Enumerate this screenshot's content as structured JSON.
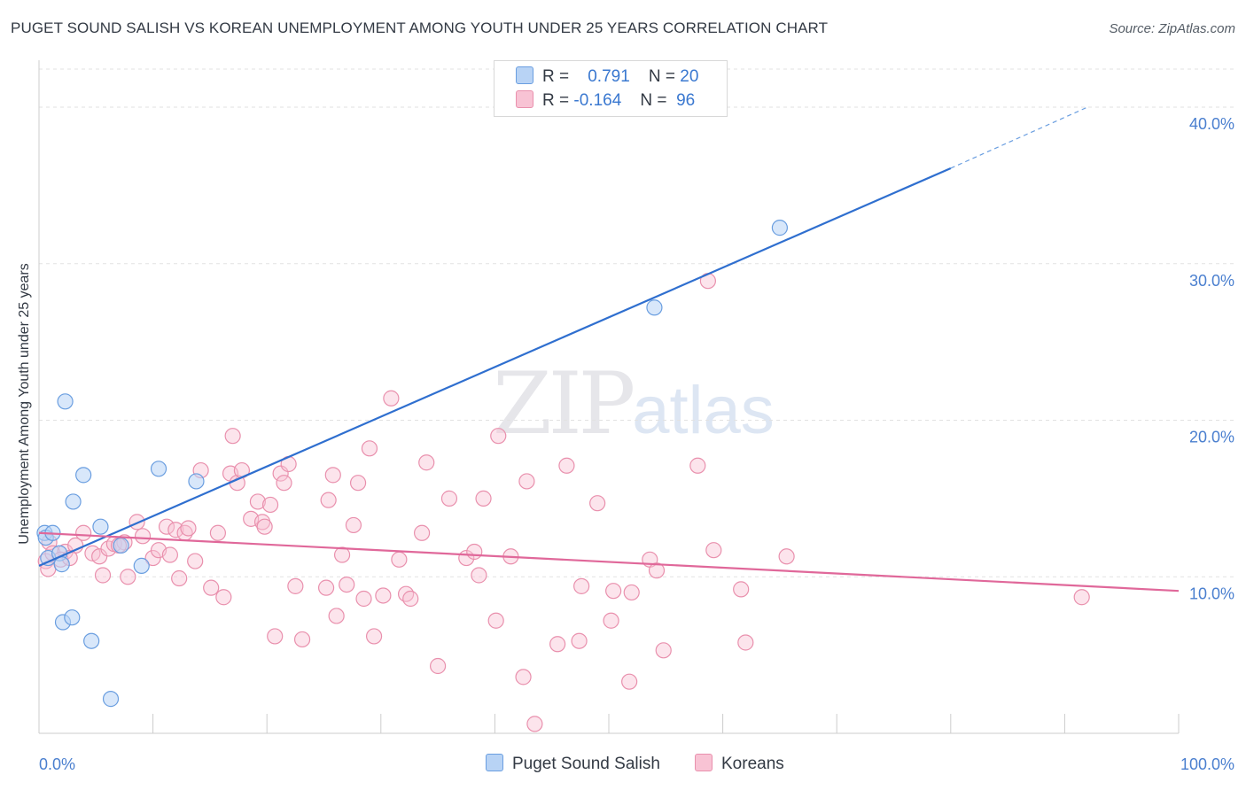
{
  "title": "PUGET SOUND SALISH VS KOREAN UNEMPLOYMENT AMONG YOUTH UNDER 25 YEARS CORRELATION CHART",
  "source": "Source: ZipAtlas.com",
  "watermark": {
    "part1": "ZIP",
    "part2": "atlas"
  },
  "legend": {
    "rows": [
      {
        "r_label": "R =",
        "r_value": "0.791",
        "n_label": "N =",
        "n_value": "20"
      },
      {
        "r_label": "R =",
        "r_value": "-0.164",
        "n_label": "N =",
        "n_value": "96"
      }
    ]
  },
  "bottom_legend": {
    "series1": "Puget Sound Salish",
    "series2": "Koreans"
  },
  "colors": {
    "salish_fill": "#b8d3f5",
    "salish_stroke": "#6a9ee0",
    "salish_line": "#2f6fcf",
    "korean_fill": "#f8c3d4",
    "korean_stroke": "#e990ad",
    "korean_line": "#e0689a",
    "axis_label": "#4a7fcf",
    "grid": "#e2e2e2"
  },
  "chart_data": {
    "type": "scatter",
    "title": "PUGET SOUND SALISH VS KOREAN UNEMPLOYMENT AMONG YOUTH UNDER 25 YEARS CORRELATION CHART",
    "xlabel": "",
    "ylabel": "Unemployment Among Youth under 25 years",
    "xlim": [
      0,
      100
    ],
    "ylim": [
      0,
      43
    ],
    "x_tick_labels": [
      {
        "value": 0,
        "label": "0.0%"
      },
      {
        "value": 100,
        "label": "100.0%"
      }
    ],
    "x_minor_ticks": [
      10,
      20,
      30,
      40,
      50,
      60,
      70,
      80,
      90,
      100
    ],
    "y_ticks": [
      {
        "value": 10,
        "label": "10.0%"
      },
      {
        "value": 20,
        "label": "20.0%"
      },
      {
        "value": 30,
        "label": "30.0%"
      },
      {
        "value": 40,
        "label": "40.0%"
      }
    ],
    "series": [
      {
        "name": "Puget Sound Salish",
        "points": [
          [
            0.5,
            12.8
          ],
          [
            0.6,
            12.5
          ],
          [
            1.2,
            12.8
          ],
          [
            0.8,
            11.2
          ],
          [
            1.8,
            11.5
          ],
          [
            2.0,
            10.8
          ],
          [
            2.3,
            21.2
          ],
          [
            3.0,
            14.8
          ],
          [
            3.9,
            16.5
          ],
          [
            5.4,
            13.2
          ],
          [
            7.2,
            12.0
          ],
          [
            9.0,
            10.7
          ],
          [
            10.5,
            16.9
          ],
          [
            13.8,
            16.1
          ],
          [
            2.1,
            7.1
          ],
          [
            2.9,
            7.4
          ],
          [
            4.6,
            5.9
          ],
          [
            6.3,
            2.2
          ],
          [
            54.0,
            27.2
          ],
          [
            65.0,
            32.3
          ]
        ],
        "trend": {
          "x": [
            0,
            80
          ],
          "y": [
            10.7,
            36.1
          ],
          "dashed_extension": {
            "x": [
              80,
              92
            ],
            "y": [
              36.1,
              40.0
            ]
          }
        }
      },
      {
        "name": "Koreans",
        "points": [
          [
            0.6,
            11.0
          ],
          [
            0.9,
            12.2
          ],
          [
            1.2,
            11.5
          ],
          [
            2.3,
            11.6
          ],
          [
            3.2,
            12.0
          ],
          [
            3.9,
            12.8
          ],
          [
            4.7,
            11.5
          ],
          [
            5.3,
            11.3
          ],
          [
            5.6,
            10.1
          ],
          [
            6.1,
            11.8
          ],
          [
            6.6,
            12.1
          ],
          [
            7.5,
            12.2
          ],
          [
            7.8,
            10.0
          ],
          [
            8.6,
            13.5
          ],
          [
            9.1,
            12.6
          ],
          [
            10.0,
            11.2
          ],
          [
            10.5,
            11.7
          ],
          [
            11.2,
            13.2
          ],
          [
            11.5,
            11.4
          ],
          [
            12.0,
            13.0
          ],
          [
            12.3,
            9.9
          ],
          [
            12.8,
            12.8
          ],
          [
            13.1,
            13.1
          ],
          [
            13.7,
            11.0
          ],
          [
            14.2,
            16.8
          ],
          [
            15.1,
            9.3
          ],
          [
            15.7,
            12.8
          ],
          [
            16.2,
            8.7
          ],
          [
            16.8,
            16.6
          ],
          [
            17.0,
            19.0
          ],
          [
            17.4,
            16.0
          ],
          [
            17.8,
            16.8
          ],
          [
            18.6,
            13.7
          ],
          [
            19.2,
            14.8
          ],
          [
            19.6,
            13.5
          ],
          [
            19.8,
            13.2
          ],
          [
            20.3,
            14.6
          ],
          [
            20.7,
            6.2
          ],
          [
            21.2,
            16.6
          ],
          [
            21.5,
            16.0
          ],
          [
            21.9,
            17.2
          ],
          [
            22.5,
            9.4
          ],
          [
            23.1,
            6.0
          ],
          [
            25.2,
            9.3
          ],
          [
            25.4,
            14.9
          ],
          [
            25.8,
            16.5
          ],
          [
            26.1,
            7.5
          ],
          [
            26.6,
            11.4
          ],
          [
            27.0,
            9.5
          ],
          [
            27.6,
            13.3
          ],
          [
            28.0,
            16.0
          ],
          [
            28.5,
            8.6
          ],
          [
            29.0,
            18.2
          ],
          [
            29.4,
            6.2
          ],
          [
            30.2,
            8.8
          ],
          [
            30.9,
            21.4
          ],
          [
            31.6,
            11.1
          ],
          [
            32.2,
            8.9
          ],
          [
            32.6,
            8.6
          ],
          [
            33.6,
            12.8
          ],
          [
            34.0,
            17.3
          ],
          [
            35.0,
            4.3
          ],
          [
            36.0,
            15.0
          ],
          [
            37.5,
            11.2
          ],
          [
            38.2,
            11.6
          ],
          [
            38.6,
            10.1
          ],
          [
            39.0,
            15.0
          ],
          [
            40.1,
            7.2
          ],
          [
            40.3,
            19.0
          ],
          [
            41.4,
            11.3
          ],
          [
            42.5,
            3.6
          ],
          [
            42.8,
            16.1
          ],
          [
            43.5,
            0.6
          ],
          [
            45.5,
            5.7
          ],
          [
            46.3,
            17.1
          ],
          [
            47.4,
            5.9
          ],
          [
            47.6,
            9.4
          ],
          [
            49.0,
            14.7
          ],
          [
            50.2,
            7.2
          ],
          [
            50.4,
            9.1
          ],
          [
            51.8,
            3.3
          ],
          [
            52.0,
            9.0
          ],
          [
            53.6,
            11.1
          ],
          [
            54.2,
            10.4
          ],
          [
            54.8,
            5.3
          ],
          [
            57.8,
            17.1
          ],
          [
            58.7,
            28.9
          ],
          [
            59.2,
            11.7
          ],
          [
            61.6,
            9.2
          ],
          [
            62.0,
            5.8
          ],
          [
            65.6,
            11.3
          ],
          [
            91.5,
            8.7
          ],
          [
            0.8,
            10.5
          ],
          [
            1.9,
            11.1
          ],
          [
            2.7,
            11.2
          ],
          [
            7.0,
            12.0
          ]
        ],
        "trend": {
          "x": [
            0,
            100
          ],
          "y": [
            12.8,
            9.1
          ]
        }
      }
    ],
    "grid": true,
    "legend_position": "top-center"
  }
}
